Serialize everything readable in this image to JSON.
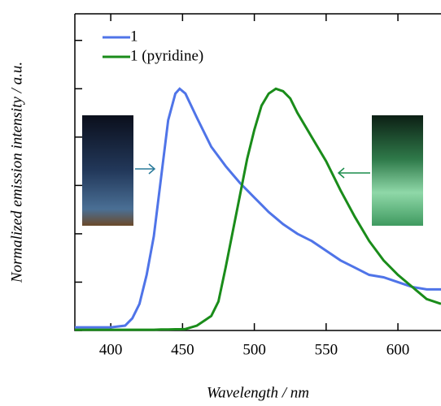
{
  "chart_data": {
    "type": "line",
    "xlabel": "Wavelength / nm",
    "ylabel": "Normalized emission intensity / a.u.",
    "x": [
      375,
      400,
      410,
      415,
      420,
      425,
      430,
      435,
      440,
      445,
      448,
      452,
      460,
      470,
      475,
      480,
      485,
      490,
      495,
      500,
      505,
      510,
      515,
      520,
      525,
      530,
      540,
      550,
      560,
      570,
      580,
      590,
      600,
      610,
      620,
      630
    ],
    "series": [
      {
        "name": "1",
        "color": "#4f74e8",
        "values": [
          0.013,
          0.013,
          0.02,
          0.05,
          0.11,
          0.23,
          0.39,
          0.63,
          0.87,
          0.98,
          1.0,
          0.98,
          0.88,
          0.76,
          0.72,
          0.68,
          0.645,
          0.61,
          0.58,
          0.55,
          0.52,
          0.49,
          0.465,
          0.44,
          0.42,
          0.4,
          0.37,
          0.33,
          0.29,
          0.26,
          0.23,
          0.22,
          0.2,
          0.18,
          0.17,
          0.17
        ]
      },
      {
        "name": "1 (pyridine)",
        "color": "#1a8c1a",
        "values": [
          0.003,
          0.003,
          0.003,
          0.003,
          0.003,
          0.003,
          0.003,
          0.004,
          0.004,
          0.005,
          0.005,
          0.006,
          0.02,
          0.06,
          0.12,
          0.26,
          0.41,
          0.56,
          0.71,
          0.83,
          0.93,
          0.98,
          1.0,
          0.99,
          0.96,
          0.9,
          0.8,
          0.7,
          0.58,
          0.47,
          0.37,
          0.29,
          0.23,
          0.18,
          0.13,
          0.11
        ]
      }
    ],
    "xlim": [
      375,
      630
    ],
    "ylim": [
      0,
      1.31
    ],
    "xticks": [
      400,
      450,
      500,
      550,
      600
    ],
    "yticks": [
      0,
      0.2,
      0.4,
      0.6,
      0.8,
      1.0,
      1.2
    ],
    "legend": "upper left"
  }
}
